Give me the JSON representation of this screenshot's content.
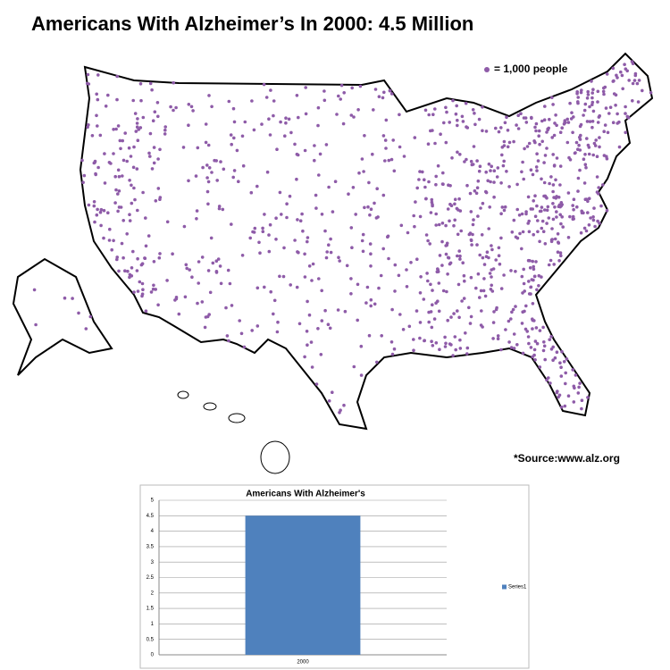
{
  "title": "Americans With Alzheimer’s In 2000: 4.5 Million",
  "legend": "= 1,000 people",
  "source": "*Source:www.alz.org",
  "chart_data": {
    "type": "bar",
    "title": "Americans With Alzheimer's",
    "categories": [
      "2000"
    ],
    "series": [
      {
        "name": "Series1",
        "color": "#4f81bd",
        "values": [
          4.5
        ]
      }
    ],
    "ylim": [
      0,
      5
    ],
    "yticks": [
      0,
      0.5,
      1,
      1.5,
      2,
      2.5,
      3,
      3.5,
      4,
      4.5,
      5
    ],
    "grid": true,
    "legend_position": "right"
  }
}
